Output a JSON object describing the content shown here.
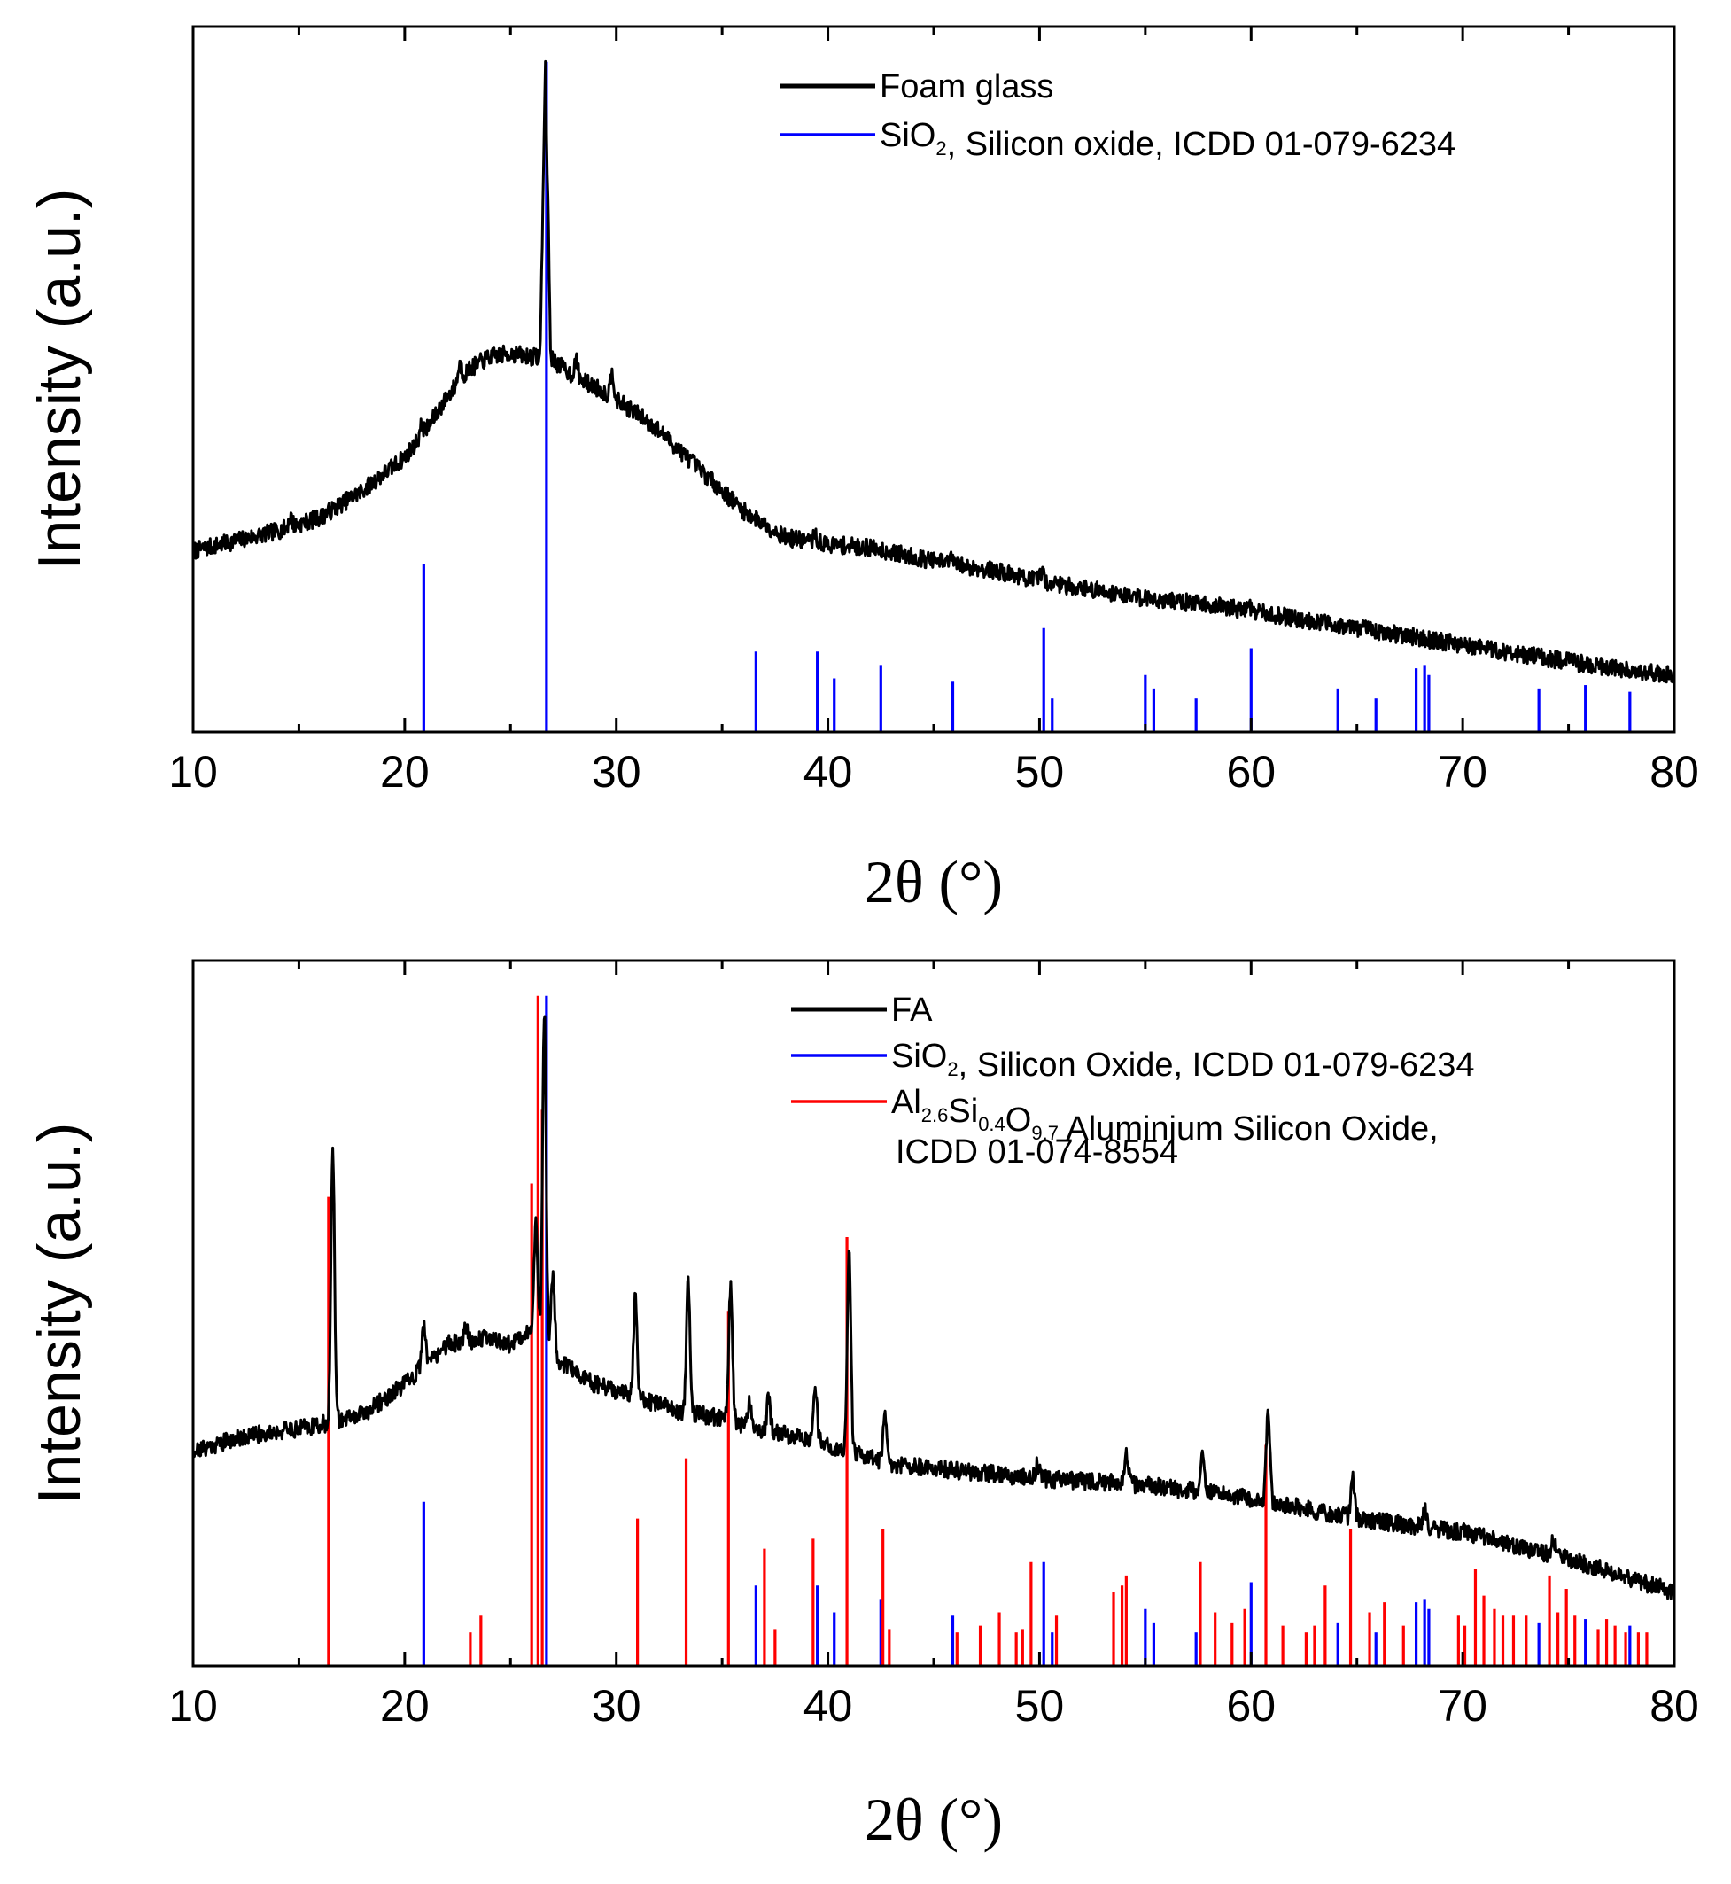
{
  "chart_data": [
    {
      "type": "line",
      "panel": "top",
      "xlabel": "2θ (°)",
      "ylabel": "Intensity (a.u.)",
      "xlim": [
        10,
        80
      ],
      "ylim": [
        0,
        100
      ],
      "xticks": [
        "10",
        "20",
        "30",
        "40",
        "50",
        "60",
        "70",
        "80"
      ],
      "legend": {
        "position": "top-right"
      },
      "series": [
        {
          "name": "Foam glass",
          "legend_label": "Foam glass",
          "color": "#000000",
          "kind": "pattern",
          "x": [
            10,
            12,
            14,
            16,
            18,
            20,
            21,
            22,
            23,
            24,
            25,
            26,
            26.4,
            26.65,
            26.9,
            27.2,
            28,
            29,
            30,
            31,
            32,
            33,
            34,
            35,
            36,
            37,
            38,
            40,
            42,
            45,
            48,
            50,
            52,
            55,
            58,
            60,
            62,
            65,
            68,
            70,
            72,
            75,
            78,
            80
          ],
          "y": [
            27,
            28.5,
            30,
            32,
            36,
            41,
            45,
            50,
            54,
            56,
            56.5,
            56,
            56,
            100,
            56,
            55,
            53,
            51.5,
            49.5,
            47.5,
            45,
            42,
            39,
            36,
            33,
            31,
            29,
            28,
            27.5,
            25.5,
            24,
            22.5,
            21.5,
            20,
            19,
            18,
            17,
            15.5,
            14,
            13,
            12,
            10.5,
            9.2,
            8.5
          ],
          "peaks": [
            {
              "x": 14.6,
              "h": 1.5
            },
            {
              "x": 20.8,
              "h": 1.5
            },
            {
              "x": 22.6,
              "h": 2.5
            },
            {
              "x": 28.1,
              "h": 2.5
            },
            {
              "x": 29.8,
              "h": 4
            },
            {
              "x": 39.4,
              "h": 1
            },
            {
              "x": 45.8,
              "h": 1
            },
            {
              "x": 50.1,
              "h": 1.5
            },
            {
              "x": 59.9,
              "h": 1
            }
          ],
          "noise": 1.3,
          "seed": 7
        },
        {
          "name": "SiO2, Silicon oxide, ICDD 01-079-6234",
          "legend_parts": [
            {
              "t": "SiO",
              "s": ""
            },
            {
              "t": "2",
              "s": "sub"
            },
            {
              "t": ", Silicon oxide, ICDD 01-079-6234",
              "s": ""
            }
          ],
          "color": "#0000ff",
          "kind": "sticks",
          "x": [
            20.9,
            26.7,
            36.6,
            39.5,
            40.3,
            42.5,
            45.9,
            50.2,
            50.6,
            55.0,
            55.4,
            57.4,
            60.0,
            64.1,
            65.9,
            67.8,
            68.2,
            68.4,
            73.6,
            75.8,
            77.9
          ],
          "y": [
            25,
            100,
            12,
            12,
            8,
            10,
            7.5,
            15.5,
            5,
            8.5,
            6.5,
            5,
            12.5,
            6.5,
            5,
            9.5,
            10,
            8.5,
            6.5,
            7,
            6
          ]
        }
      ]
    },
    {
      "type": "line",
      "panel": "bottom",
      "xlabel": "2θ (°)",
      "ylabel": "Intensity (a.u.)",
      "xlim": [
        10,
        80
      ],
      "ylim": [
        0,
        100
      ],
      "xticks": [
        "10",
        "20",
        "30",
        "40",
        "50",
        "60",
        "70",
        "80"
      ],
      "legend": {
        "position": "top-right"
      },
      "series": [
        {
          "name": "FA",
          "legend_label": "FA",
          "color": "#000000",
          "kind": "pattern",
          "x": [
            10,
            12,
            14,
            16,
            18,
            20,
            22,
            24,
            25,
            25.8,
            27.5,
            29,
            31,
            33,
            35,
            37,
            39,
            41,
            43,
            45,
            50,
            55,
            60,
            65,
            70,
            75,
            80
          ],
          "y": [
            32,
            34,
            35,
            36,
            37.5,
            42,
            48,
            49,
            48,
            50,
            45,
            42,
            40,
            38,
            37,
            35,
            34,
            32,
            30,
            29.5,
            28,
            27,
            25,
            22,
            20,
            16,
            11
          ],
          "peaks": [
            {
              "x": 16.6,
              "h": 40
            },
            {
              "x": 20.9,
              "h": 6
            },
            {
              "x": 22.9,
              "h": 2.5
            },
            {
              "x": 26.2,
              "h": 18
            },
            {
              "x": 26.6,
              "h": 50
            },
            {
              "x": 27.0,
              "h": 12
            },
            {
              "x": 30.9,
              "h": 15
            },
            {
              "x": 33.4,
              "h": 20
            },
            {
              "x": 35.4,
              "h": 20
            },
            {
              "x": 36.3,
              "h": 4
            },
            {
              "x": 37.2,
              "h": 5
            },
            {
              "x": 39.4,
              "h": 8
            },
            {
              "x": 41.0,
              "h": 30
            },
            {
              "x": 42.7,
              "h": 7
            },
            {
              "x": 49.9,
              "h": 2
            },
            {
              "x": 54.1,
              "h": 5
            },
            {
              "x": 57.7,
              "h": 6
            },
            {
              "x": 60.8,
              "h": 14
            },
            {
              "x": 64.8,
              "h": 6
            },
            {
              "x": 68.2,
              "h": 2.5
            },
            {
              "x": 74.3,
              "h": 2.5
            }
          ],
          "noise": 1.3,
          "seed": 21
        },
        {
          "name": "SiO2, Silicon Oxide, ICDD 01-079-6234",
          "legend_parts": [
            {
              "t": "SiO",
              "s": ""
            },
            {
              "t": "2",
              "s": "sub"
            },
            {
              "t": ", Silicon Oxide, ICDD 01-079-6234",
              "s": ""
            }
          ],
          "color": "#0000ff",
          "kind": "sticks",
          "x": [
            20.9,
            26.7,
            36.6,
            39.5,
            40.3,
            42.5,
            45.9,
            50.2,
            50.6,
            55.0,
            55.4,
            57.4,
            60.0,
            64.1,
            65.9,
            67.8,
            68.2,
            68.4,
            73.6,
            75.8,
            77.9
          ],
          "y": [
            24.5,
            100,
            12,
            12,
            8,
            10,
            7.5,
            15.5,
            5,
            8.5,
            6.5,
            5,
            12.5,
            6.5,
            5,
            9.5,
            10,
            8.5,
            6.5,
            7,
            6
          ]
        },
        {
          "name": "Al2.6Si0.4O9.7 Aluminium Silicon Oxide, ICDD 01-074-8554",
          "legend_parts": [
            {
              "t": "Al",
              "s": ""
            },
            {
              "t": "2.6",
              "s": "sub"
            },
            {
              "t": "Si",
              "s": ""
            },
            {
              "t": "0.4",
              "s": "sub"
            },
            {
              "t": "O",
              "s": ""
            },
            {
              "t": "9.7",
              "s": "sub"
            },
            {
              "t": " Aluminium Silicon Oxide,",
              "s": ""
            }
          ],
          "legend_line2": "ICDD 01-074-8554",
          "color": "#ff0000",
          "kind": "sticks",
          "x": [
            16.4,
            23.1,
            23.6,
            26.0,
            26.3,
            26.5,
            31.0,
            33.3,
            35.3,
            37.0,
            37.5,
            39.3,
            40.9,
            42.6,
            42.9,
            46.1,
            47.2,
            48.1,
            48.9,
            49.2,
            49.6,
            50.8,
            53.5,
            53.9,
            54.1,
            57.6,
            58.3,
            59.1,
            59.7,
            60.7,
            61.5,
            62.6,
            63.0,
            63.5,
            64.7,
            65.6,
            66.3,
            67.2,
            69.8,
            70.1,
            70.6,
            71.0,
            71.5,
            71.9,
            72.4,
            73.0,
            74.1,
            74.5,
            74.9,
            75.3,
            76.4,
            76.8,
            77.2,
            77.7,
            78.3,
            78.7
          ],
          "y": [
            70,
            5,
            7.5,
            72,
            100,
            83,
            22,
            31,
            53,
            17.5,
            5.5,
            19,
            64,
            20.5,
            5.5,
            5,
            6,
            8,
            5,
            5.5,
            15.5,
            7.5,
            11,
            12,
            13.5,
            15.5,
            8,
            6.5,
            8.5,
            33,
            6,
            5,
            6,
            12,
            20.5,
            8,
            9.5,
            6,
            7.5,
            6,
            14.5,
            10.5,
            8.5,
            7.5,
            7.5,
            7.5,
            13.5,
            8,
            11.5,
            7.5,
            5.5,
            7,
            6,
            5,
            5,
            5
          ]
        }
      ]
    }
  ]
}
